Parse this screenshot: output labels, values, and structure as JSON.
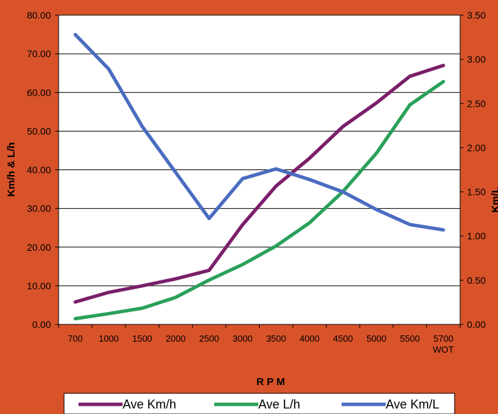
{
  "chart_data": {
    "type": "line",
    "categories": [
      "700",
      "1000",
      "1500",
      "2000",
      "2500",
      "3000",
      "3500",
      "4000",
      "4500",
      "5000",
      "5500",
      "5700"
    ],
    "category_sublabels": {
      "5700": "WOT"
    },
    "xlabel": "R P M",
    "ylabel_left": "Km/h & L/h",
    "ylabel_right": "Km/L",
    "ylim_left": [
      0,
      80
    ],
    "ylim_right": [
      0,
      3.5
    ],
    "y_ticks_left": [
      "0.00",
      "10.00",
      "20.00",
      "30.00",
      "40.00",
      "50.00",
      "60.00",
      "70.00",
      "80.00"
    ],
    "y_ticks_right": [
      "0.00",
      "0.50",
      "1.00",
      "1.50",
      "2.00",
      "2.50",
      "3.00",
      "3.50"
    ],
    "grid": true,
    "legend_position": "bottom",
    "series": [
      {
        "name": "Ave Km/h",
        "axis": "left",
        "color": "#7a1f6a",
        "values": [
          5.8,
          8.3,
          10,
          11.8,
          14,
          25.8,
          35.8,
          43,
          51.2,
          57.3,
          64.2,
          67
        ]
      },
      {
        "name": "Ave L/h",
        "axis": "left",
        "color": "#2aa05a",
        "values": [
          1.5,
          2.8,
          4.2,
          7,
          11.5,
          15.5,
          20.3,
          26.3,
          34.4,
          44.3,
          56.8,
          62.8
        ]
      },
      {
        "name": "Ave Km/L",
        "axis": "right",
        "color": "#4a6cc0",
        "values": [
          3.28,
          2.89,
          2.24,
          1.72,
          1.2,
          1.65,
          1.76,
          1.64,
          1.5,
          1.3,
          1.13,
          1.07
        ]
      }
    ]
  }
}
